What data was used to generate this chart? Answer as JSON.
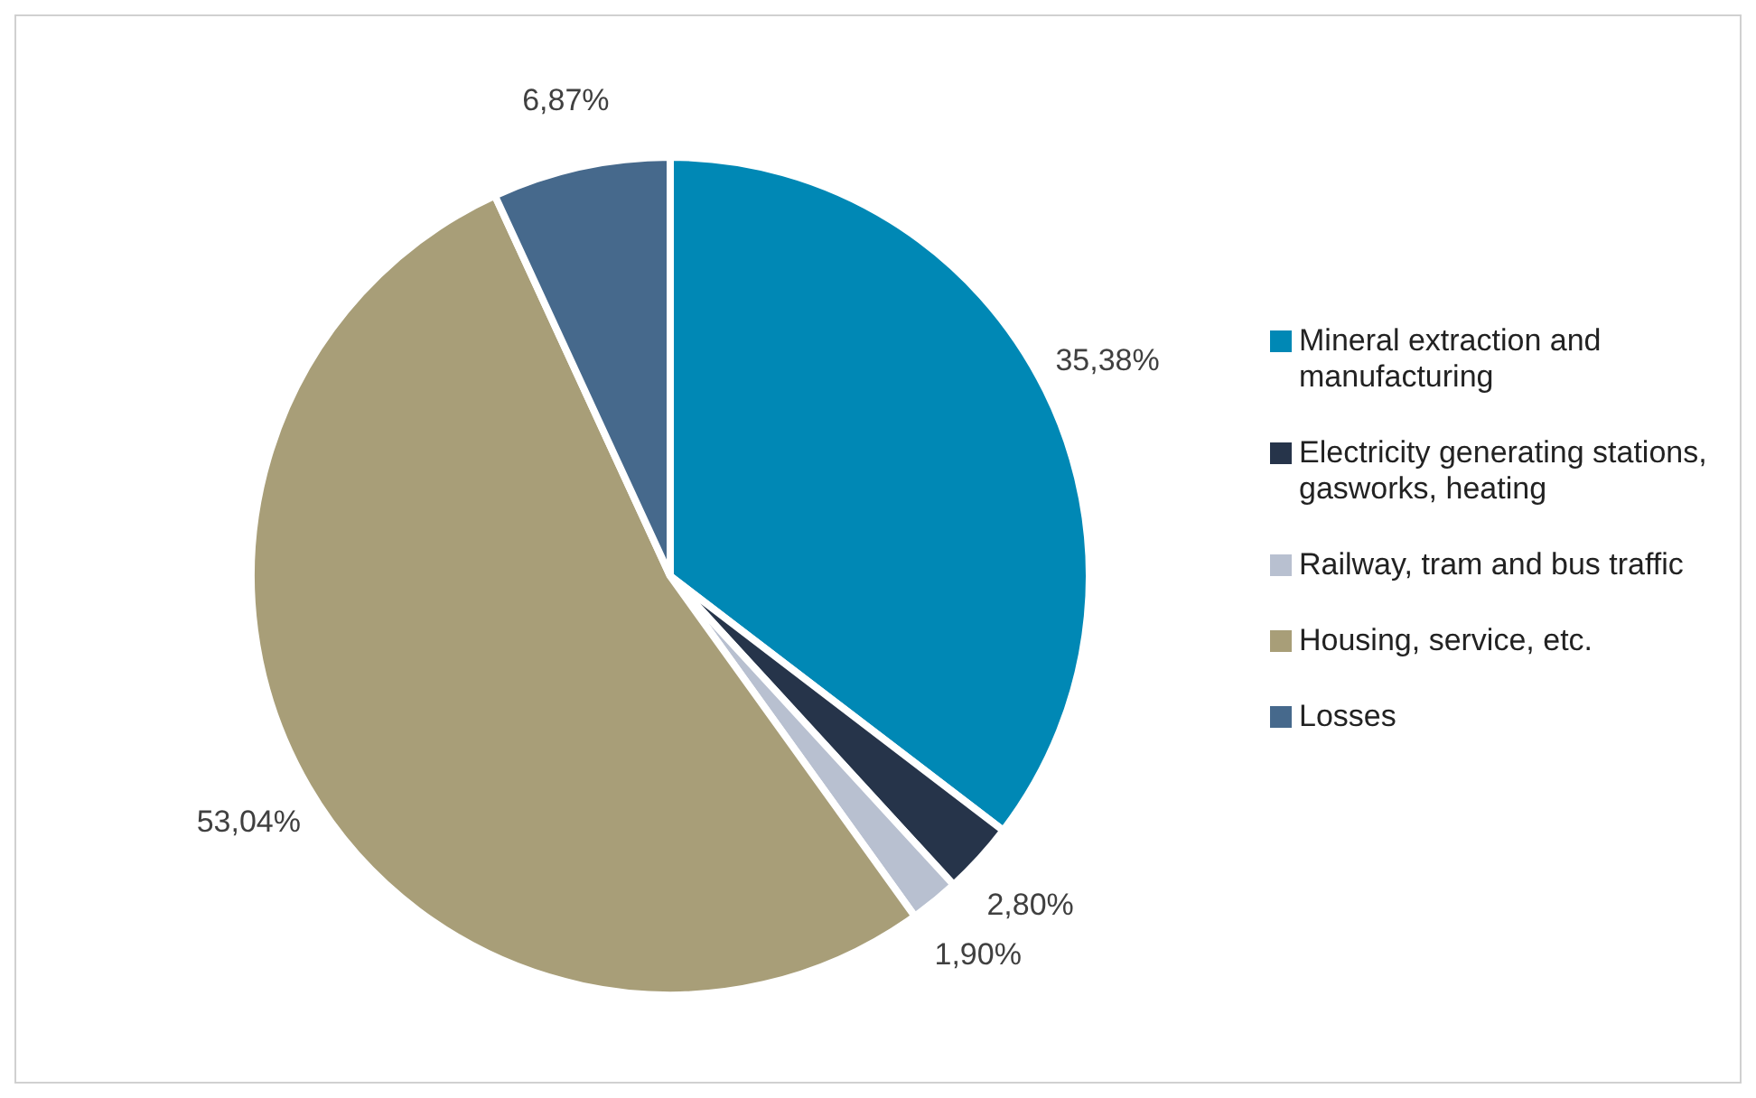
{
  "chart_data": {
    "type": "pie",
    "categories": [
      "Mineral extraction and manufacturing",
      "Electricity generating stations, gasworks, heating",
      "Railway, tram and bus traffic",
      "Housing, service, etc.",
      "Losses"
    ],
    "values": [
      35.38,
      2.8,
      1.9,
      53.04,
      6.87
    ],
    "value_labels": [
      "35,38%",
      "2,80%",
      "1,90%",
      "53,04%",
      "6,87%"
    ],
    "colors": [
      "#0088b5",
      "#26344a",
      "#b8c0d0",
      "#a89e78",
      "#46698c"
    ],
    "legend": "right"
  }
}
